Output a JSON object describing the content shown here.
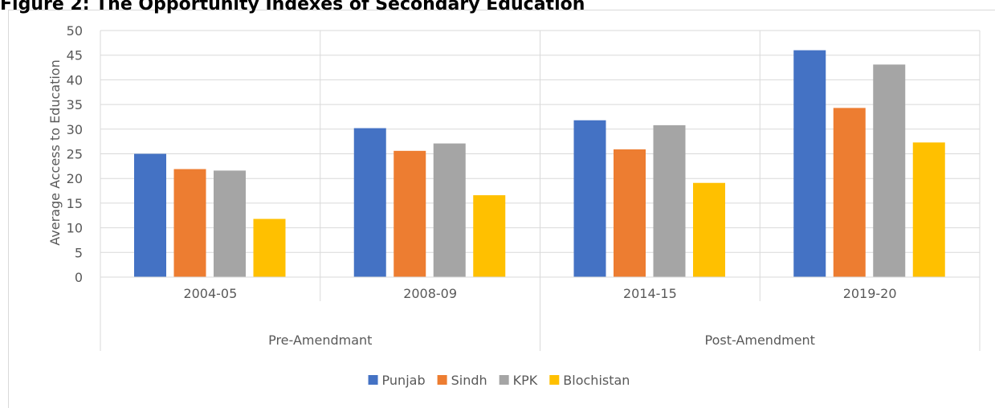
{
  "chart_data": {
    "type": "bar",
    "title": "Figure 2: The Opportunity Indexes of Secondary Education",
    "y_label": "Average Access to Education",
    "categories": [
      "2004-05",
      "2008-09",
      "2014-15",
      "2019-20"
    ],
    "groups": [
      {
        "label": "Pre-Amendmant",
        "count": 2
      },
      {
        "label": "Post-Amendment",
        "count": 2
      }
    ],
    "series": [
      {
        "name": "Punjab",
        "color": "#4472c4",
        "values": [
          25,
          30.2,
          31.8,
          46
        ]
      },
      {
        "name": "Sindh",
        "color": "#ed7d31",
        "values": [
          21.9,
          25.6,
          25.9,
          34.3
        ]
      },
      {
        "name": "KPK",
        "color": "#a5a5a5",
        "values": [
          21.6,
          27.1,
          30.8,
          43.1
        ]
      },
      {
        "name": "Blochistan",
        "color": "#ffc000",
        "values": [
          11.8,
          16.6,
          19.1,
          27.3
        ]
      }
    ],
    "ylim": [
      0,
      50
    ],
    "yticks": [
      0,
      5,
      10,
      15,
      20,
      25,
      30,
      35,
      40,
      45,
      50
    ],
    "grid": true,
    "legend": "bottom"
  }
}
